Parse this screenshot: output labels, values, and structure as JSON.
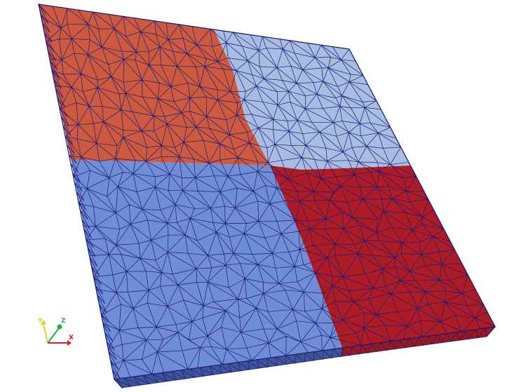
{
  "mesh": {
    "partition_colors": {
      "top_left": "#cd5a3e",
      "top_right": "#a8bde0",
      "bottom_left": "#6f8ed6",
      "bottom_right": "#ad1c24"
    },
    "side_colors": {
      "left_side": "#4a5aa0",
      "left_side_upper": "#7a3a3a",
      "bottom_side": "#3f5598",
      "bottom_side_right": "#9a1820"
    },
    "edge_color": "#1a1a7a"
  },
  "orientation_axes": {
    "x_label": "X",
    "y_label": "Y",
    "z_label": "Z",
    "x_color": "#d22020",
    "y_color": "#e8d020",
    "z_color": "#20b040"
  }
}
